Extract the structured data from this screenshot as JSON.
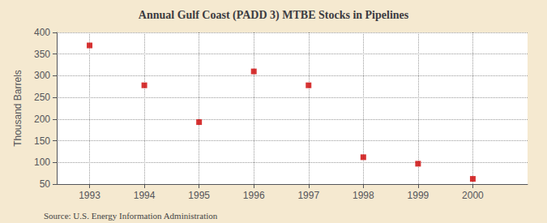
{
  "chart_data": {
    "type": "scatter",
    "title": "Annual Gulf Coast (PADD 3) MTBE Stocks in Pipelines",
    "ylabel": "Thousand Barrels",
    "source": "Source: U.S. Energy Information Administration",
    "x": [
      1993,
      1994,
      1995,
      1996,
      1997,
      1998,
      1999,
      2000
    ],
    "values": [
      370,
      278,
      193,
      310,
      278,
      112,
      97,
      62
    ],
    "color": "#cc0000",
    "marker": "square",
    "xlim": [
      1992.4,
      2001.0
    ],
    "xticks": [
      1993,
      1994,
      1995,
      1996,
      1997,
      1998,
      1999,
      2000
    ],
    "ylim": [
      50,
      400
    ],
    "yticks": [
      50,
      100,
      150,
      200,
      250,
      300,
      350,
      400
    ],
    "grid": true
  }
}
